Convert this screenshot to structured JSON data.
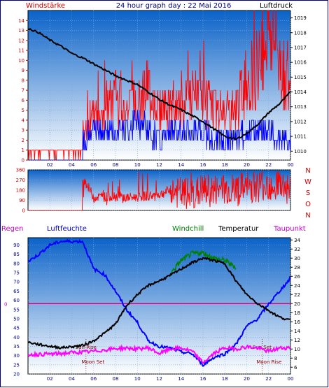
{
  "header": {
    "left_label": "Windstärke",
    "title": "24 hour graph day : 22 Mai 2016",
    "right_label": "Luftdruck"
  },
  "lower_header": {
    "regen": "Regen",
    "luftfeuchte": "Luftfeuchte",
    "windchill": "Windchill",
    "temperatur": "Temperatur",
    "taupunkt": "Taupunkt"
  },
  "colors": {
    "frame": "#000080",
    "plot_top": "#0a62c8",
    "plot_bottom": "#ffffff",
    "wind_gust": "#ff0000",
    "wind_speed": "#0000ff",
    "pressure": "#000000",
    "direction": "#ff0000",
    "humidity": "#0000ff",
    "temperature": "#000000",
    "windchill": "#008000",
    "dewpoint": "#ff00ff",
    "zero_line": "#e0007f",
    "sun_moon": "#8b0000",
    "left_axis_red": "#cc0000",
    "axis_magenta": "#cc00cc"
  },
  "chart_data": [
    {
      "type": "line",
      "title": "24 hour graph day : 22 Mai 2016",
      "x_ticks": [
        "02",
        "04",
        "06",
        "08",
        "10",
        "12",
        "14",
        "16",
        "18",
        "20",
        "22",
        "00"
      ],
      "x_range_hours": [
        0,
        24
      ],
      "y_left_label": "Windstärke",
      "y_left_ticks": [
        0,
        1,
        2,
        3,
        4,
        5,
        6,
        7,
        8,
        9,
        10,
        11,
        12,
        13,
        14
      ],
      "y_left_range": [
        0,
        15
      ],
      "y_right_label": "Luftdruck",
      "y_right_ticks": [
        1010,
        1011,
        1012,
        1013,
        1014,
        1015,
        1016,
        1017,
        1018,
        1019
      ],
      "y_right_range": [
        1009.4,
        1019.5
      ],
      "series": [
        {
          "name": "Luftdruck",
          "axis": "right",
          "x": [
            0,
            1,
            2,
            3,
            4,
            5,
            6,
            7,
            8,
            9,
            10,
            11,
            12,
            13,
            14,
            15,
            16,
            17,
            18,
            19,
            20,
            21,
            22,
            23,
            24
          ],
          "values": [
            1018.3,
            1018.0,
            1017.5,
            1017.1,
            1016.6,
            1016.3,
            1015.9,
            1015.5,
            1015.1,
            1014.8,
            1014.5,
            1014.0,
            1013.5,
            1013.1,
            1012.8,
            1012.4,
            1012.0,
            1011.5,
            1011.0,
            1010.8,
            1011.2,
            1011.8,
            1012.6,
            1013.2,
            1014.0
          ]
        },
        {
          "name": "Windstärke",
          "axis": "left",
          "x": [
            0,
            1,
            2,
            3,
            4,
            5,
            6,
            7,
            8,
            9,
            10,
            11,
            12,
            13,
            14,
            15,
            16,
            17,
            18,
            19,
            20,
            21,
            22,
            23,
            24
          ],
          "values": [
            1,
            1,
            1,
            1,
            1,
            3,
            4,
            5,
            6,
            5,
            6,
            7,
            5,
            5,
            5,
            6,
            6,
            5,
            5,
            5,
            8,
            9,
            13,
            10,
            6
          ]
        },
        {
          "name": "Wind",
          "axis": "left",
          "x": [
            0,
            1,
            2,
            3,
            4,
            5,
            6,
            7,
            8,
            9,
            10,
            11,
            12,
            13,
            14,
            15,
            16,
            17,
            18,
            19,
            20,
            21,
            22,
            23,
            24
          ],
          "values": [
            0,
            0,
            0,
            0,
            0,
            2,
            3,
            3,
            3,
            3,
            4,
            3,
            2,
            3,
            3,
            3,
            3,
            2,
            2,
            2,
            3,
            3,
            3,
            2,
            2
          ]
        }
      ]
    },
    {
      "type": "line",
      "title": "",
      "x_range_hours": [
        0,
        24
      ],
      "y_left_ticks": [
        0,
        90,
        180,
        270,
        360
      ],
      "y_left_range": [
        0,
        360
      ],
      "y_right_ticks": [
        "N",
        "W",
        "S",
        "O",
        "N"
      ],
      "series": [
        {
          "name": "Windrichtung",
          "x": [
            0,
            1,
            2,
            3,
            4,
            5,
            6,
            7,
            8,
            9,
            10,
            11,
            12,
            13,
            14,
            15,
            16,
            17,
            18,
            19,
            20,
            21,
            22,
            23,
            24
          ],
          "values": [
            0,
            0,
            0,
            0,
            0,
            300,
            120,
            120,
            130,
            110,
            120,
            130,
            140,
            180,
            150,
            140,
            180,
            170,
            190,
            180,
            200,
            220,
            230,
            240,
            180
          ]
        }
      ]
    },
    {
      "type": "line",
      "title": "",
      "x_ticks": [
        "02",
        "04",
        "06",
        "08",
        "10",
        "12",
        "14",
        "16",
        "18",
        "20",
        "22",
        "00"
      ],
      "x_range_hours": [
        0,
        24
      ],
      "y_left_label": "Luftfeuchte",
      "y_left_ticks": [
        20,
        25,
        30,
        35,
        40,
        45,
        50,
        55,
        60,
        65,
        70,
        75,
        80,
        85,
        90
      ],
      "y_left_range": [
        20,
        94
      ],
      "y_right_label": "Temperatur",
      "y_right_ticks": [
        6,
        8,
        10,
        12,
        14,
        16,
        18,
        20,
        22,
        24,
        26,
        28,
        30,
        32,
        34
      ],
      "y_right_range": [
        4.5,
        34.5
      ],
      "rain_zero_label": "0",
      "annotations": [
        {
          "text": "Sun Rise",
          "x_hour": 5.3
        },
        {
          "text": "Moon Set",
          "x_hour": 5.3
        },
        {
          "text": "Sun Set",
          "x_hour": 21.4
        },
        {
          "text": "Moon Rise",
          "x_hour": 21.4
        }
      ],
      "series": [
        {
          "name": "Luftfeuchte",
          "axis": "left",
          "x": [
            0,
            1,
            2,
            3,
            4,
            5,
            6,
            7,
            8,
            9,
            10,
            11,
            12,
            13,
            14,
            15,
            16,
            17,
            18,
            19,
            20,
            21,
            22,
            23,
            24
          ],
          "values": [
            81,
            85,
            90,
            92,
            92,
            92,
            77,
            74,
            65,
            55,
            48,
            38,
            35,
            34,
            32,
            31,
            25,
            29,
            31,
            36,
            46,
            50,
            58,
            65,
            72
          ]
        },
        {
          "name": "Temperatur",
          "axis": "right",
          "x": [
            0,
            1,
            2,
            3,
            4,
            5,
            6,
            7,
            8,
            9,
            10,
            11,
            12,
            13,
            14,
            15,
            16,
            17,
            18,
            19,
            20,
            21,
            22,
            23,
            24
          ],
          "values": [
            11.5,
            11,
            10.6,
            10.3,
            10.5,
            10.8,
            11.8,
            13.5,
            15.5,
            19.5,
            22,
            24,
            25,
            26.2,
            27.6,
            29,
            30,
            29.5,
            28.8,
            25,
            22,
            20,
            18.5,
            17,
            16.3
          ]
        },
        {
          "name": "Windchill",
          "axis": "right",
          "x": [
            13,
            14,
            15,
            16,
            17,
            18,
            19
          ],
          "values": [
            26.5,
            29.5,
            31,
            31.2,
            30,
            29.5,
            28
          ]
        },
        {
          "name": "Taupunkt",
          "axis": "right",
          "x": [
            0,
            1,
            2,
            3,
            4,
            5,
            6,
            7,
            8,
            9,
            10,
            11,
            12,
            13,
            14,
            15,
            16,
            17,
            18,
            19,
            20,
            21,
            22,
            23,
            24
          ],
          "values": [
            8.8,
            8.8,
            8.9,
            9,
            9.2,
            9.3,
            9.5,
            9.8,
            10.1,
            10.2,
            10,
            10.3,
            9,
            10,
            10.2,
            9.5,
            7,
            9,
            10.3,
            10,
            10.5,
            10.2,
            9.5,
            10.2,
            10.3
          ]
        }
      ]
    }
  ]
}
